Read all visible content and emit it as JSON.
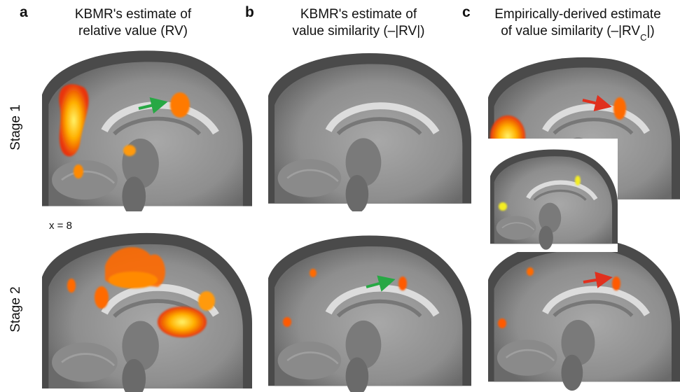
{
  "panels": [
    {
      "letter": "a",
      "lines": [
        [
          "KBMR's estimate of"
        ],
        [
          "relative value (RV)"
        ]
      ]
    },
    {
      "letter": "b",
      "lines": [
        [
          "KBMR's estimate of"
        ],
        [
          "value similarity (–|RV|)"
        ]
      ]
    },
    {
      "letter": "c",
      "lines": [
        [
          "Empirically-derived estimate"
        ],
        [
          "of value similarity (–|RV",
          "C",
          "|)"
        ]
      ]
    }
  ],
  "rows": [
    "Stage 1",
    "Stage 2"
  ],
  "slice_label": "x = 8"
}
